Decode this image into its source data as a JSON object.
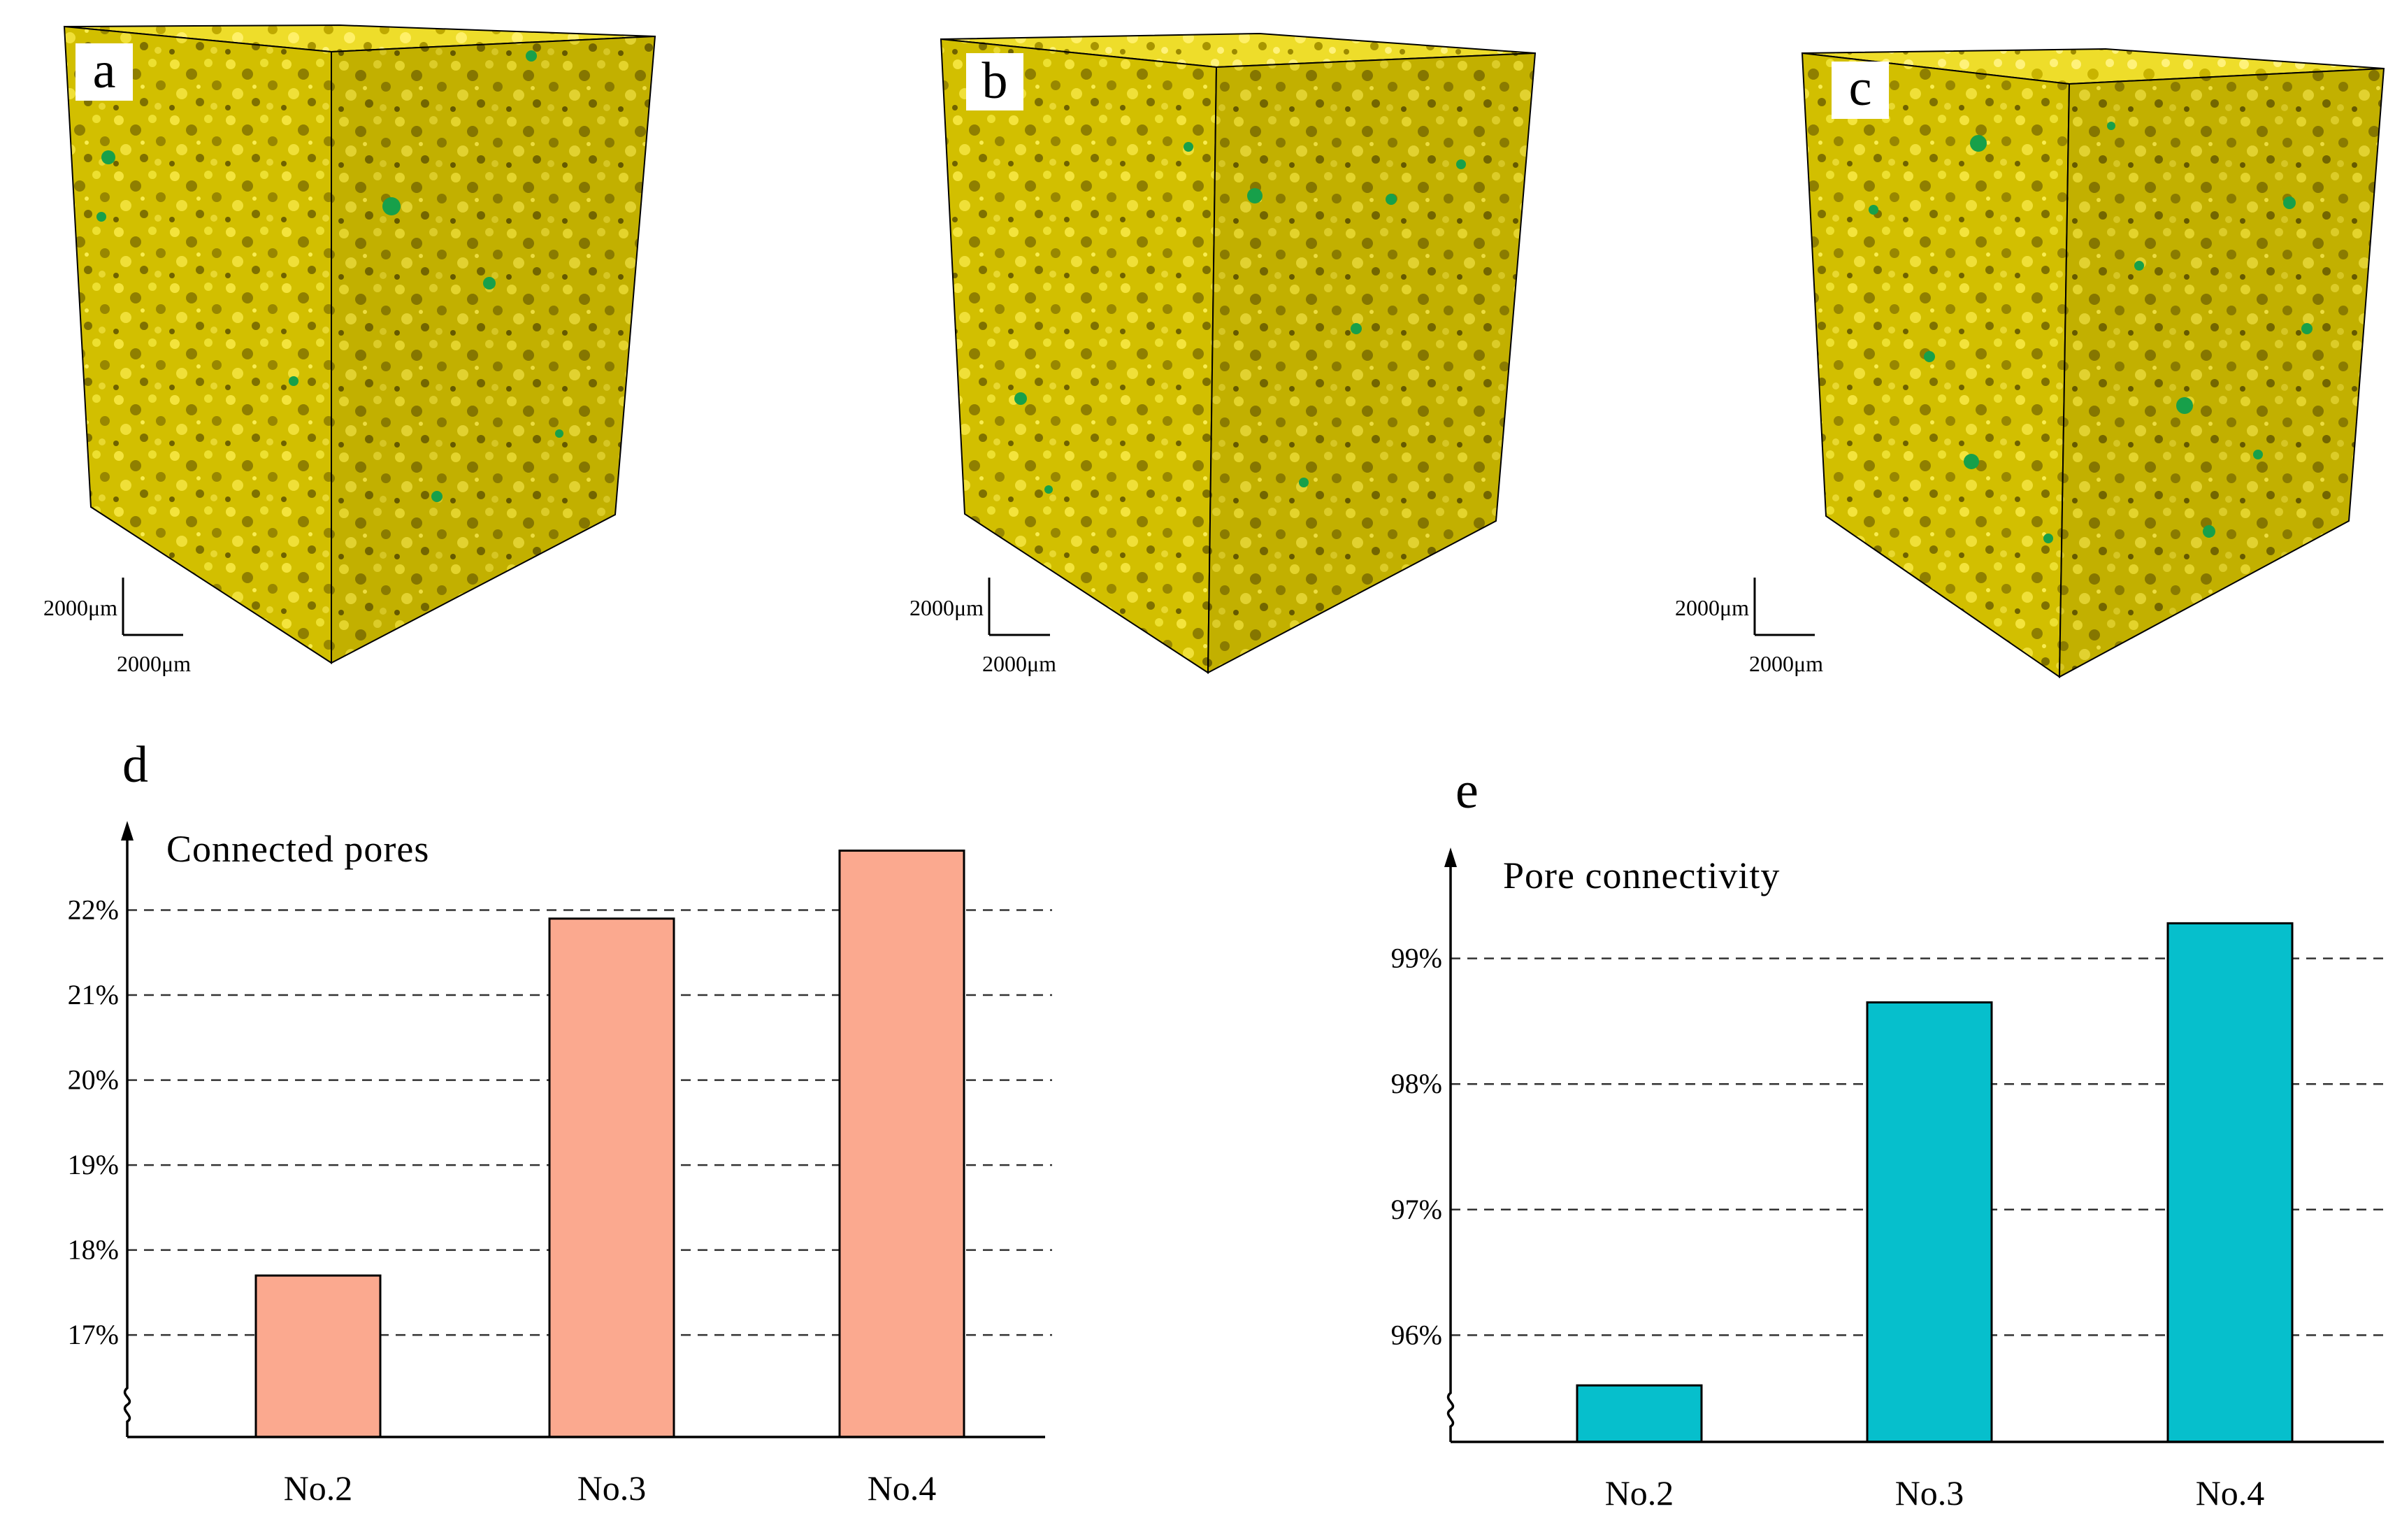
{
  "colors": {
    "sand": "#d8c400",
    "sand_light": "#efe040",
    "sand_dark": "#9c8c00",
    "pore": "#17a04a",
    "bar_d": "#fba98f",
    "bar_e": "#06bfcc"
  },
  "volumes": [
    {
      "letter": "a",
      "scale_vertical": "2000μm",
      "scale_horizontal": "2000μm"
    },
    {
      "letter": "b",
      "scale_vertical": "2000μm",
      "scale_horizontal": "2000μm"
    },
    {
      "letter": "c",
      "scale_vertical": "2000μm",
      "scale_horizontal": "2000μm"
    }
  ],
  "chart_data": [
    {
      "type": "bar",
      "panel": "d",
      "title": "Connected pores",
      "categories": [
        "No.2",
        "No.3",
        "No.4"
      ],
      "values": [
        17.7,
        21.9,
        22.7
      ],
      "unit": "%",
      "yticks": [
        17,
        18,
        19,
        20,
        21,
        22
      ],
      "ytick_labels": [
        "17%",
        "18%",
        "19%",
        "20%",
        "21%",
        "22%"
      ],
      "ylim": [
        15.8,
        23.0
      ],
      "axis_break": true,
      "grid": "dashed horizontal",
      "xlabel": "",
      "ylabel": ""
    },
    {
      "type": "bar",
      "panel": "e",
      "title": "Pore connectivity",
      "categories": [
        "No.2",
        "No.3",
        "No.4"
      ],
      "values": [
        95.6,
        98.65,
        99.28
      ],
      "unit": "%",
      "yticks": [
        96,
        97,
        98,
        99
      ],
      "ytick_labels": [
        "96%",
        "97%",
        "98%",
        "99%"
      ],
      "ylim": [
        95.15,
        99.85
      ],
      "axis_break": true,
      "grid": "dashed horizontal",
      "xlabel": "",
      "ylabel": ""
    }
  ]
}
